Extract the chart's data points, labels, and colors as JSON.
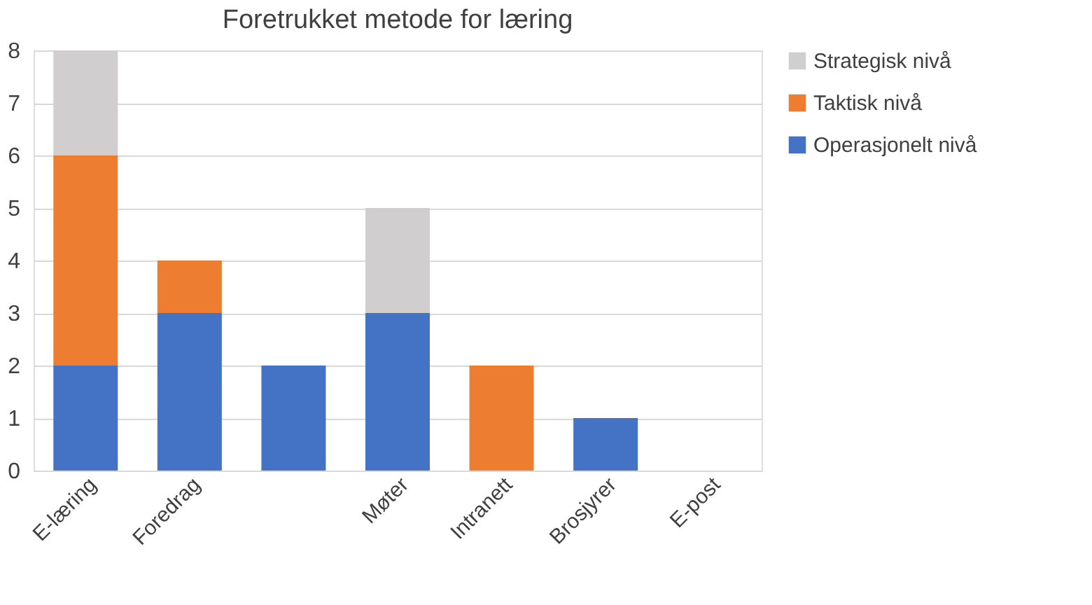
{
  "chart_data": {
    "type": "bar",
    "title": "Foretrukket metode for læring",
    "categories": [
      "E-læring",
      "Foredrag",
      null,
      "Møter",
      "Intranett",
      "Brosjyrer",
      "E-post"
    ],
    "series": [
      {
        "name": "Operasjonelt nivå",
        "color": "#4472c4",
        "values": [
          2,
          3,
          2,
          3,
          0,
          1,
          0
        ]
      },
      {
        "name": "Taktisk nivå",
        "color": "#ed7d31",
        "values": [
          4,
          1,
          0,
          0,
          2,
          0,
          0
        ]
      },
      {
        "name": "Strategisk nivå",
        "color": "#d0cece",
        "values": [
          2,
          0,
          0,
          2,
          0,
          0,
          0
        ]
      }
    ],
    "stacked": true,
    "ylim": [
      0,
      8
    ],
    "yticks": [
      0,
      1,
      2,
      3,
      4,
      5,
      6,
      7,
      8
    ],
    "grid": "y",
    "legend": "right"
  }
}
